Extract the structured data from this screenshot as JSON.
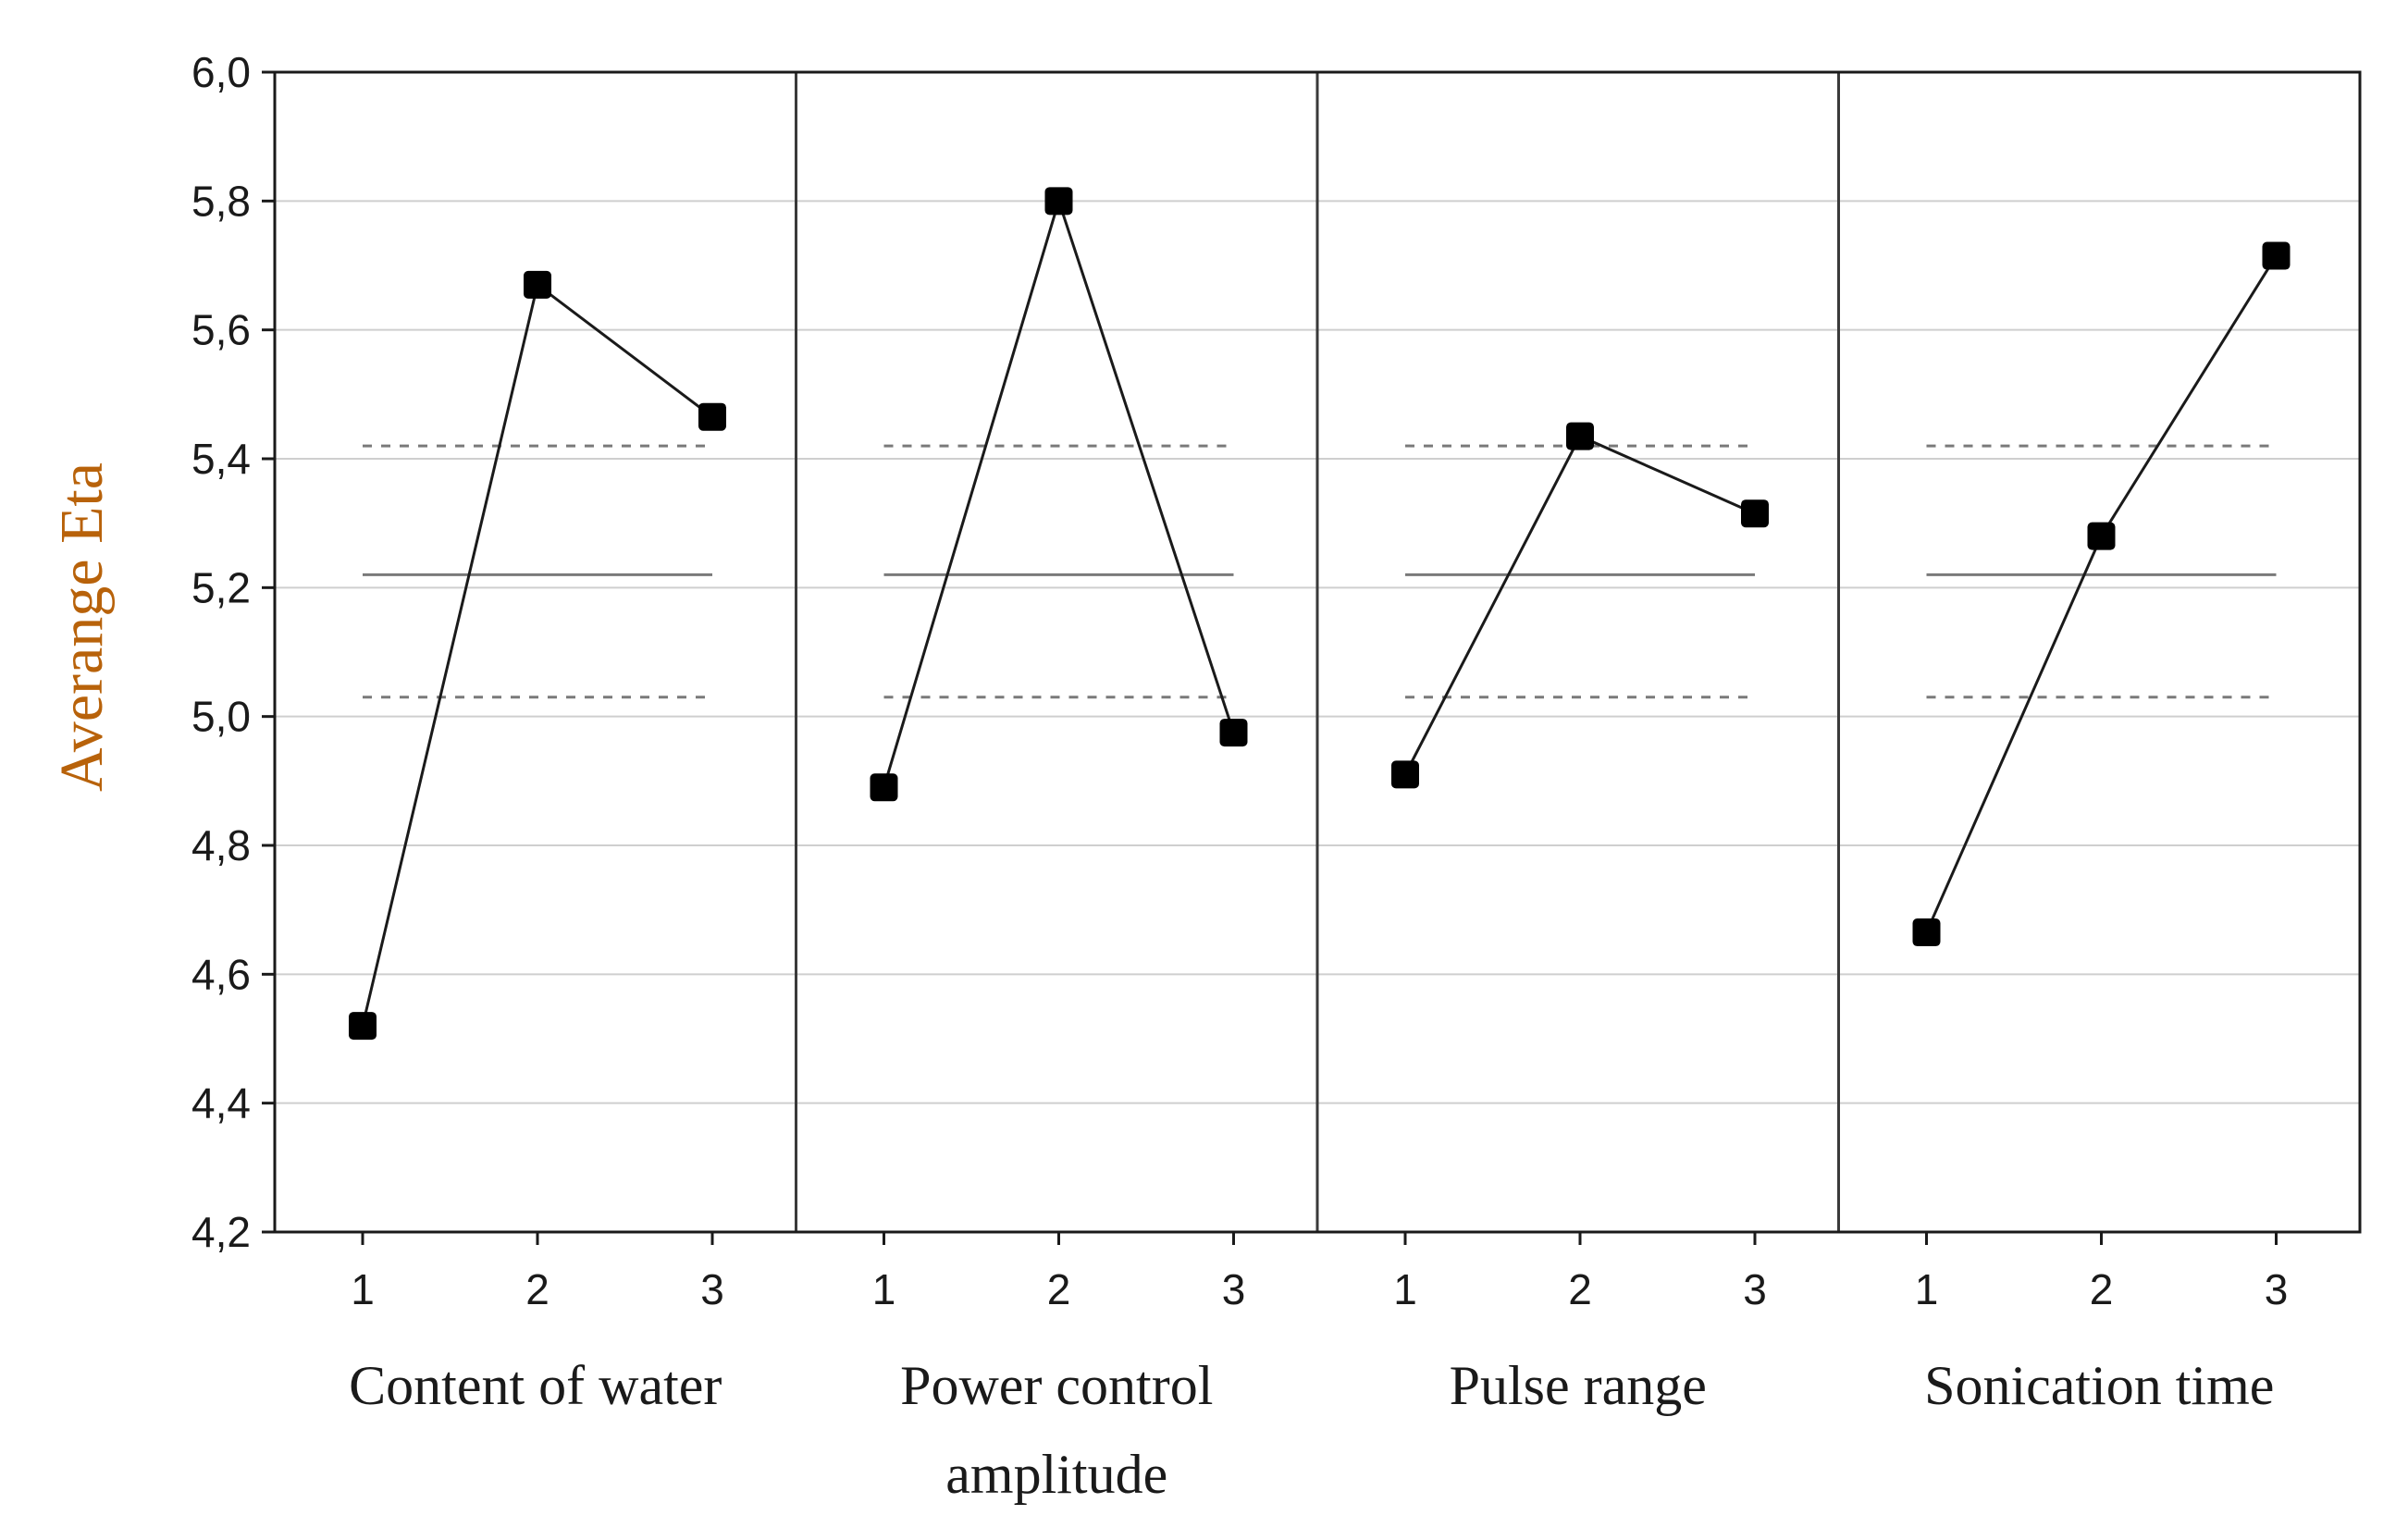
{
  "chart_data": {
    "type": "line",
    "ylabel": "Averange  Eta",
    "ylim": [
      4.2,
      6.0
    ],
    "yticks": [
      "4,2",
      "4,4",
      "4,6",
      "4,8",
      "5,0",
      "5,2",
      "5,4",
      "5,6",
      "5,8",
      "6,0"
    ],
    "ytick_values": [
      4.2,
      4.4,
      4.6,
      4.8,
      5.0,
      5.2,
      5.4,
      5.6,
      5.8,
      6.0
    ],
    "grid": true,
    "x_levels": [
      "1",
      "2",
      "3"
    ],
    "mean_line": 5.22,
    "upper_limit": 5.42,
    "lower_limit": 5.03,
    "panels": [
      {
        "name": "Content of water",
        "label_lines": [
          "Content of water"
        ],
        "values": [
          4.52,
          5.67,
          5.465
        ]
      },
      {
        "name": "Power control amplitude",
        "label_lines": [
          "Power control",
          "amplitude"
        ],
        "values": [
          4.89,
          5.8,
          4.975
        ]
      },
      {
        "name": "Pulse range",
        "label_lines": [
          "Pulse range"
        ],
        "values": [
          4.91,
          5.435,
          5.315
        ]
      },
      {
        "name": "Sonication time",
        "label_lines": [
          "Sonication time"
        ],
        "values": [
          4.665,
          5.28,
          5.715
        ]
      }
    ]
  }
}
